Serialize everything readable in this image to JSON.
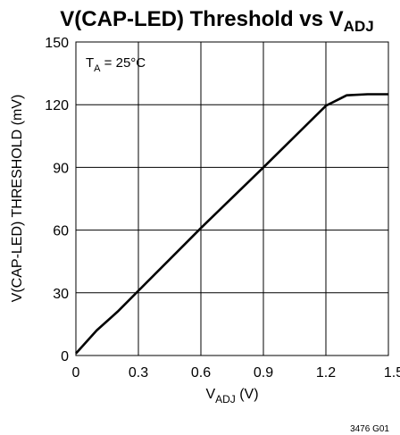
{
  "chart_data": {
    "type": "line",
    "title": {
      "main": "V(CAP-LED) Threshold vs V",
      "sub": "ADJ"
    },
    "xlabel": {
      "main": "V",
      "sub": "ADJ",
      "suffix": " (V)"
    },
    "ylabel": "V(CAP-LED) THRESHOLD (mV)",
    "xlim": [
      0,
      1.5
    ],
    "ylim": [
      0,
      150
    ],
    "xticks": [
      "0",
      "0.3",
      "0.6",
      "0.9",
      "1.2",
      "1.5"
    ],
    "yticks": [
      "0",
      "30",
      "60",
      "90",
      "120",
      "150"
    ],
    "grid": true,
    "annotation": {
      "main": "T",
      "sub": "A",
      "suffix": " = 25°C"
    },
    "figure_id": "3476 G01",
    "line_color": "#000000",
    "series": [
      {
        "x": [
          0,
          0.1,
          0.2,
          0.3,
          0.6,
          0.9,
          1.2,
          1.3,
          1.4,
          1.5
        ],
        "y": [
          1,
          12,
          21,
          31,
          61,
          90,
          119.5,
          124.5,
          125,
          125
        ]
      }
    ]
  }
}
